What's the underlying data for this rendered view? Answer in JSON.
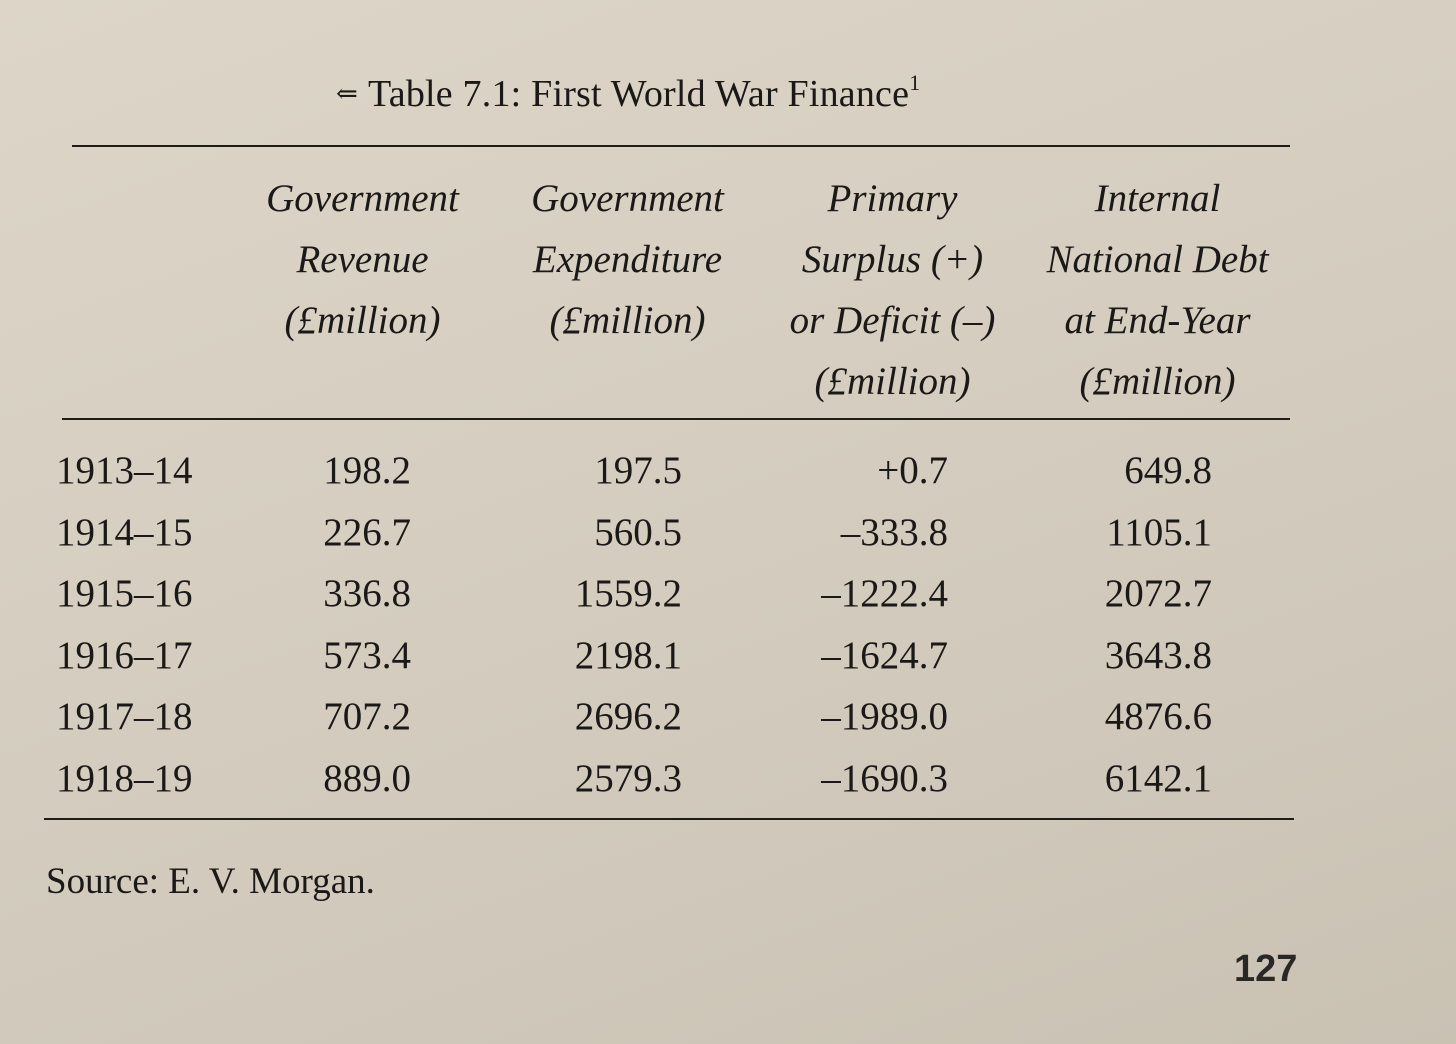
{
  "table": {
    "caption": "Table 7.1: First World War Finance",
    "caption_note": "1",
    "caption_mark": "⇐",
    "headers": [
      [
        "Government",
        "Revenue",
        "(£million)"
      ],
      [
        "Government",
        "Expenditure",
        "(£million)"
      ],
      [
        "Primary",
        "Surplus (+)",
        "or Deficit (–)",
        "(£million)"
      ],
      [
        "Internal",
        "National Debt",
        "at End-Year",
        "(£million)"
      ]
    ],
    "rows": [
      {
        "year": "1913–14",
        "revenue": "198.2",
        "expenditure": "197.5",
        "surplus": "+0.7",
        "debt": "649.8"
      },
      {
        "year": "1914–15",
        "revenue": "226.7",
        "expenditure": "560.5",
        "surplus": "–333.8",
        "debt": "1105.1"
      },
      {
        "year": "1915–16",
        "revenue": "336.8",
        "expenditure": "1559.2",
        "surplus": "–1222.4",
        "debt": "2072.7"
      },
      {
        "year": "1916–17",
        "revenue": "573.4",
        "expenditure": "2198.1",
        "surplus": "–1624.7",
        "debt": "3643.8"
      },
      {
        "year": "1917–18",
        "revenue": "707.2",
        "expenditure": "2696.2",
        "surplus": "–1989.0",
        "debt": "4876.6"
      },
      {
        "year": "1918–19",
        "revenue": "889.0",
        "expenditure": "2579.3",
        "surplus": "–1690.3",
        "debt": "6142.1"
      }
    ],
    "source": "Source: E. V. Morgan."
  },
  "page_number": "127"
}
